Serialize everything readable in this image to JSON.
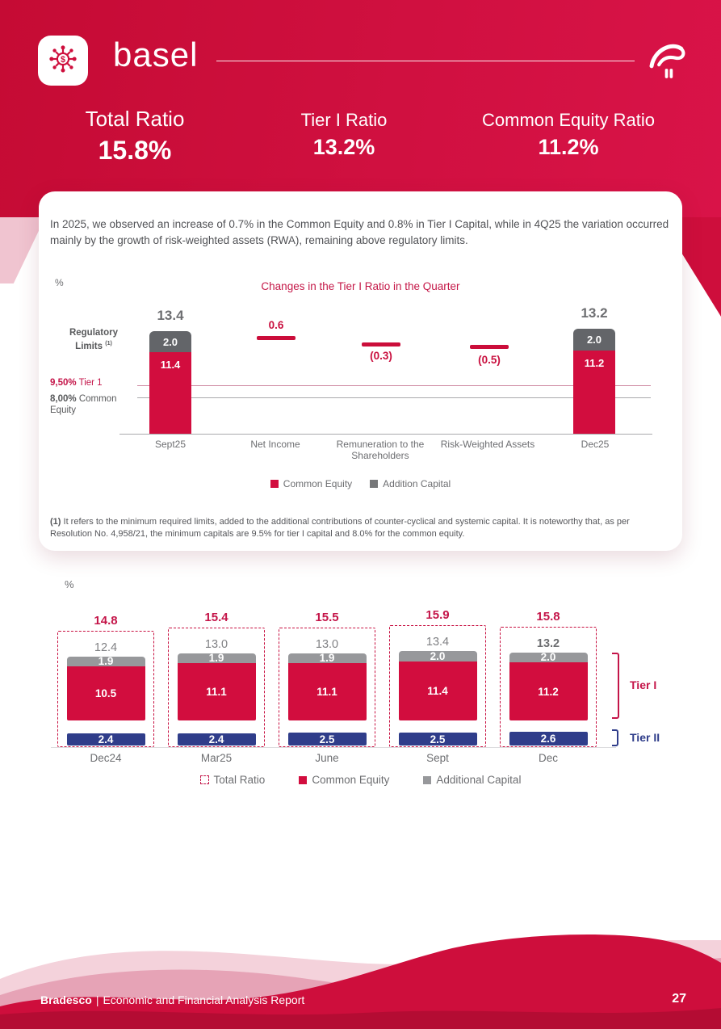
{
  "colors": {
    "brand_red": "#ce0e3c",
    "bar_red": "#d20d3e",
    "bar_gray_dark": "#636569",
    "bar_gray_light": "#97989b",
    "bar_blue": "#2f3d8a",
    "accent_text": "#c41549"
  },
  "header": {
    "title": "basel",
    "app_icon": "network-dollar-icon",
    "logo": "bradesco-logo"
  },
  "stats": [
    {
      "label": "Total Ratio",
      "value": "15.8%"
    },
    {
      "label": "Tier I Ratio",
      "value": "13.2%"
    },
    {
      "label": "Common Equity Ratio",
      "value": "11.2%"
    }
  ],
  "card": {
    "intro": "In 2025, we observed an increase of 0.7% in the Common Equity and 0.8% in Tier I Capital, while in 4Q25 the variation occurred mainly by the growth of risk-weighted assets (RWA), remaining above regulatory limits.",
    "footnote_marker": "(1)",
    "footnote": " It refers to the minimum required limits, added to the additional contributions of counter-cyclical and systemic capital. It is noteworthy that, as per Resolution No. 4,958/21, the minimum capitals are 9.5% for tier I capital and 8.0% for the common equity."
  },
  "chart_data": [
    {
      "type": "bar",
      "subtype": "waterfall",
      "title": "Changes in the Tier I Ratio in the Quarter",
      "unit": "%",
      "left_note_line1": "Regulatory",
      "left_note_line2": "Limits",
      "left_note_sup": "(1)",
      "reference_lines": [
        {
          "value_label": "9,50%",
          "name": "Tier 1",
          "value": 9.5
        },
        {
          "value_label": "8,00%",
          "name": "Common Equity",
          "value": 8.0
        }
      ],
      "columns": [
        {
          "category": "Sept25",
          "kind": "stacked-bar",
          "total": 13.4,
          "total_label": "13.4",
          "common_equity": 11.4,
          "common_label": "11.4",
          "addition_capital": 2.0,
          "addition_label": "2.0"
        },
        {
          "category": "Net Income",
          "kind": "delta",
          "value": 0.6,
          "value_label": "0.6"
        },
        {
          "category": "Remuneration to the Shareholders",
          "kind": "delta",
          "value": -0.3,
          "value_label": "(0.3)"
        },
        {
          "category": "Risk-Weighted Assets",
          "kind": "delta",
          "value": -0.5,
          "value_label": "(0.5)"
        },
        {
          "category": "Dec25",
          "kind": "stacked-bar",
          "total": 13.2,
          "total_label": "13.2",
          "common_equity": 11.2,
          "common_label": "11.2",
          "addition_capital": 2.0,
          "addition_label": "2.0"
        }
      ],
      "legend": [
        {
          "label": "Common Equity",
          "color": "#d20d3e"
        },
        {
          "label": "Addition Capital",
          "color": "#767779"
        }
      ]
    },
    {
      "type": "bar",
      "subtype": "grouped-stacked",
      "unit": "%",
      "categories": [
        "Dec24",
        "Mar25",
        "June",
        "Sept",
        "Dec"
      ],
      "columns": [
        {
          "category": "Dec24",
          "total": 14.8,
          "tier1_total": 12.4,
          "additional_capital": 1.9,
          "common_equity": 10.5,
          "tier2": 2.4,
          "highlight": false
        },
        {
          "category": "Mar25",
          "total": 15.4,
          "tier1_total": 13.0,
          "additional_capital": 1.9,
          "common_equity": 11.1,
          "tier2": 2.4,
          "highlight": false
        },
        {
          "category": "June",
          "total": 15.5,
          "tier1_total": 13.0,
          "additional_capital": 1.9,
          "common_equity": 11.1,
          "tier2": 2.5,
          "highlight": false
        },
        {
          "category": "Sept",
          "total": 15.9,
          "tier1_total": 13.4,
          "additional_capital": 2.0,
          "common_equity": 11.4,
          "tier2": 2.5,
          "highlight": false
        },
        {
          "category": "Dec",
          "total": 15.8,
          "tier1_total": 13.2,
          "additional_capital": 2.0,
          "common_equity": 11.2,
          "tier2": 2.6,
          "highlight": true
        }
      ],
      "brackets": [
        {
          "label": "Tier I",
          "color": "#c41549"
        },
        {
          "label": "Tier II",
          "color": "#2f3d8a"
        }
      ],
      "legend": [
        {
          "label": "Total Ratio",
          "swatch": "dashed-outline"
        },
        {
          "label": "Common Equity",
          "color": "#d20d3e"
        },
        {
          "label": "Additional Capital",
          "color": "#97989b"
        }
      ]
    }
  ],
  "footer": {
    "brand": "Bradesco",
    "separator": "|",
    "report": "Economic and Financial Analysis Report",
    "page": "27"
  }
}
